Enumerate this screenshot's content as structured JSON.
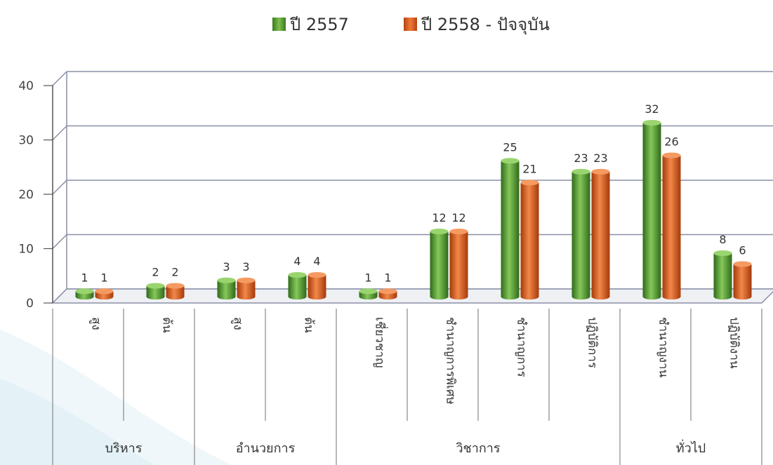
{
  "legend": {
    "items": [
      {
        "label": "ปี 2557",
        "color": "#4e8f2c"
      },
      {
        "label": "ปี 2558 - ปัจจุบัน",
        "color": "#d2541b"
      }
    ]
  },
  "chart_data": {
    "type": "bar",
    "categories": [
      "สูง",
      "ต้น",
      "สูง",
      "ต้น",
      "เชี่ยวชาญ",
      "ชำนาญการพิเศษ",
      "ชำนาญการ",
      "ปฏิบัติการ",
      "ชำนาญงาน",
      "ปฏิบัติงาน"
    ],
    "groups": [
      {
        "label": "บริหาร",
        "categories": 2
      },
      {
        "label": "อำนวยการ",
        "categories": 2
      },
      {
        "label": "วิชาการ",
        "categories": 4
      },
      {
        "label": "ทั่วไป",
        "categories": 2
      }
    ],
    "series": [
      {
        "name": "ปี 2557",
        "values": [
          1,
          2,
          3,
          4,
          1,
          12,
          25,
          23,
          32,
          8
        ],
        "color": "#4e8f2c"
      },
      {
        "name": "ปี 2558 - ปัจจุบัน",
        "values": [
          1,
          2,
          3,
          4,
          1,
          12,
          21,
          23,
          26,
          6
        ],
        "color": "#d2541b"
      }
    ],
    "yticks": [
      0,
      10,
      20,
      30,
      40
    ],
    "ylim": [
      0,
      40
    ],
    "grid": true,
    "legend_position": "top-center",
    "xlabel": "",
    "ylabel": "",
    "title": ""
  }
}
